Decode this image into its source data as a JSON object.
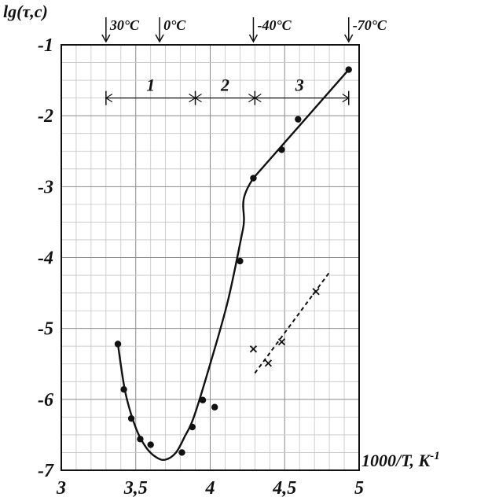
{
  "chart_data": {
    "type": "scatter",
    "xlabel_parts": {
      "main": "1000/T, K",
      "sup": "-1"
    },
    "ylabel": "lg(τ,c)",
    "xlim": [
      3.0,
      5.0
    ],
    "ylim": [
      -7,
      -1
    ],
    "xticks": [
      {
        "value": 3.0,
        "label": "3"
      },
      {
        "value": 3.5,
        "label": "3,5"
      },
      {
        "value": 4.0,
        "label": "4"
      },
      {
        "value": 4.5,
        "label": "4,5"
      },
      {
        "value": 5.0,
        "label": "5"
      }
    ],
    "yticks": [
      {
        "value": -1,
        "label": "-1"
      },
      {
        "value": -2,
        "label": "-2"
      },
      {
        "value": -3,
        "label": "-3"
      },
      {
        "value": -4,
        "label": "-4"
      },
      {
        "value": -5,
        "label": "-5"
      },
      {
        "value": -6,
        "label": "-6"
      },
      {
        "value": -7,
        "label": "-7"
      }
    ],
    "grid": true,
    "temperature_markers": [
      {
        "x": 3.3,
        "label": "30°C"
      },
      {
        "x": 3.66,
        "label": "0°C"
      },
      {
        "x": 4.29,
        "label": "-40°C"
      },
      {
        "x": 4.93,
        "label": "-70°C"
      }
    ],
    "regions": {
      "y": -1.75,
      "bounds": [
        3.3,
        3.9,
        4.3,
        4.93
      ],
      "labels": [
        {
          "x": 3.6,
          "label": "1"
        },
        {
          "x": 4.1,
          "label": "2"
        },
        {
          "x": 4.6,
          "label": "3"
        }
      ]
    },
    "series": [
      {
        "marker": "dot",
        "points": [
          [
            3.38,
            -5.22
          ],
          [
            3.42,
            -5.86
          ],
          [
            3.47,
            -6.27
          ],
          [
            3.53,
            -6.56
          ],
          [
            3.6,
            -6.64
          ],
          [
            3.81,
            -6.75
          ],
          [
            3.88,
            -6.39
          ],
          [
            3.95,
            -6.01
          ],
          [
            4.03,
            -6.11
          ],
          [
            4.2,
            -4.05
          ],
          [
            4.29,
            -2.88
          ],
          [
            4.48,
            -2.48
          ],
          [
            4.59,
            -2.05
          ],
          [
            4.93,
            -1.35
          ]
        ]
      },
      {
        "marker": "cross",
        "points": [
          [
            4.29,
            -5.29
          ],
          [
            4.39,
            -5.49
          ],
          [
            4.48,
            -5.19
          ],
          [
            4.71,
            -4.48
          ]
        ]
      }
    ],
    "fit_curve": [
      [
        3.38,
        -5.22
      ],
      [
        3.43,
        -5.9
      ],
      [
        3.5,
        -6.4
      ],
      [
        3.57,
        -6.68
      ],
      [
        3.64,
        -6.82
      ],
      [
        3.7,
        -6.85
      ],
      [
        3.77,
        -6.75
      ],
      [
        3.83,
        -6.52
      ],
      [
        3.89,
        -6.25
      ],
      [
        4.0,
        -5.5
      ],
      [
        4.12,
        -4.6
      ],
      [
        4.22,
        -3.6
      ],
      [
        4.29,
        -2.88
      ],
      [
        4.93,
        -1.35
      ]
    ],
    "fit_line_dashed": [
      [
        4.3,
        -5.63
      ],
      [
        4.8,
        -4.21
      ]
    ]
  }
}
